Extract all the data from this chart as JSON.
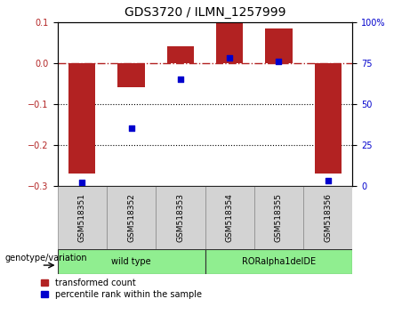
{
  "title": "GDS3720 / ILMN_1257999",
  "samples": [
    "GSM518351",
    "GSM518352",
    "GSM518353",
    "GSM518354",
    "GSM518355",
    "GSM518356"
  ],
  "bar_values": [
    -0.27,
    -0.06,
    0.04,
    0.1,
    0.085,
    -0.27
  ],
  "scatter_values": [
    2.0,
    35.0,
    65.0,
    78.0,
    76.0,
    3.0
  ],
  "group_labels": [
    "wild type",
    "RORalpha1delDE"
  ],
  "group_ranges": [
    [
      0,
      3
    ],
    [
      3,
      6
    ]
  ],
  "group_color": "#90EE90",
  "group_row_label": "genotype/variation",
  "ylim_left": [
    -0.3,
    0.1
  ],
  "ylim_right": [
    0,
    100
  ],
  "yticks_left": [
    -0.3,
    -0.2,
    -0.1,
    0.0,
    0.1
  ],
  "yticks_right": [
    0,
    25,
    50,
    75,
    100
  ],
  "bar_color": "#B22222",
  "scatter_color": "#0000CD",
  "dotted_lines": [
    -0.1,
    -0.2
  ],
  "legend_bar_label": "transformed count",
  "legend_scatter_label": "percentile rank within the sample",
  "sample_box_color": "#D3D3D3",
  "title_fontsize": 10,
  "tick_fontsize": 7,
  "label_fontsize": 7,
  "sample_fontsize": 6.5
}
